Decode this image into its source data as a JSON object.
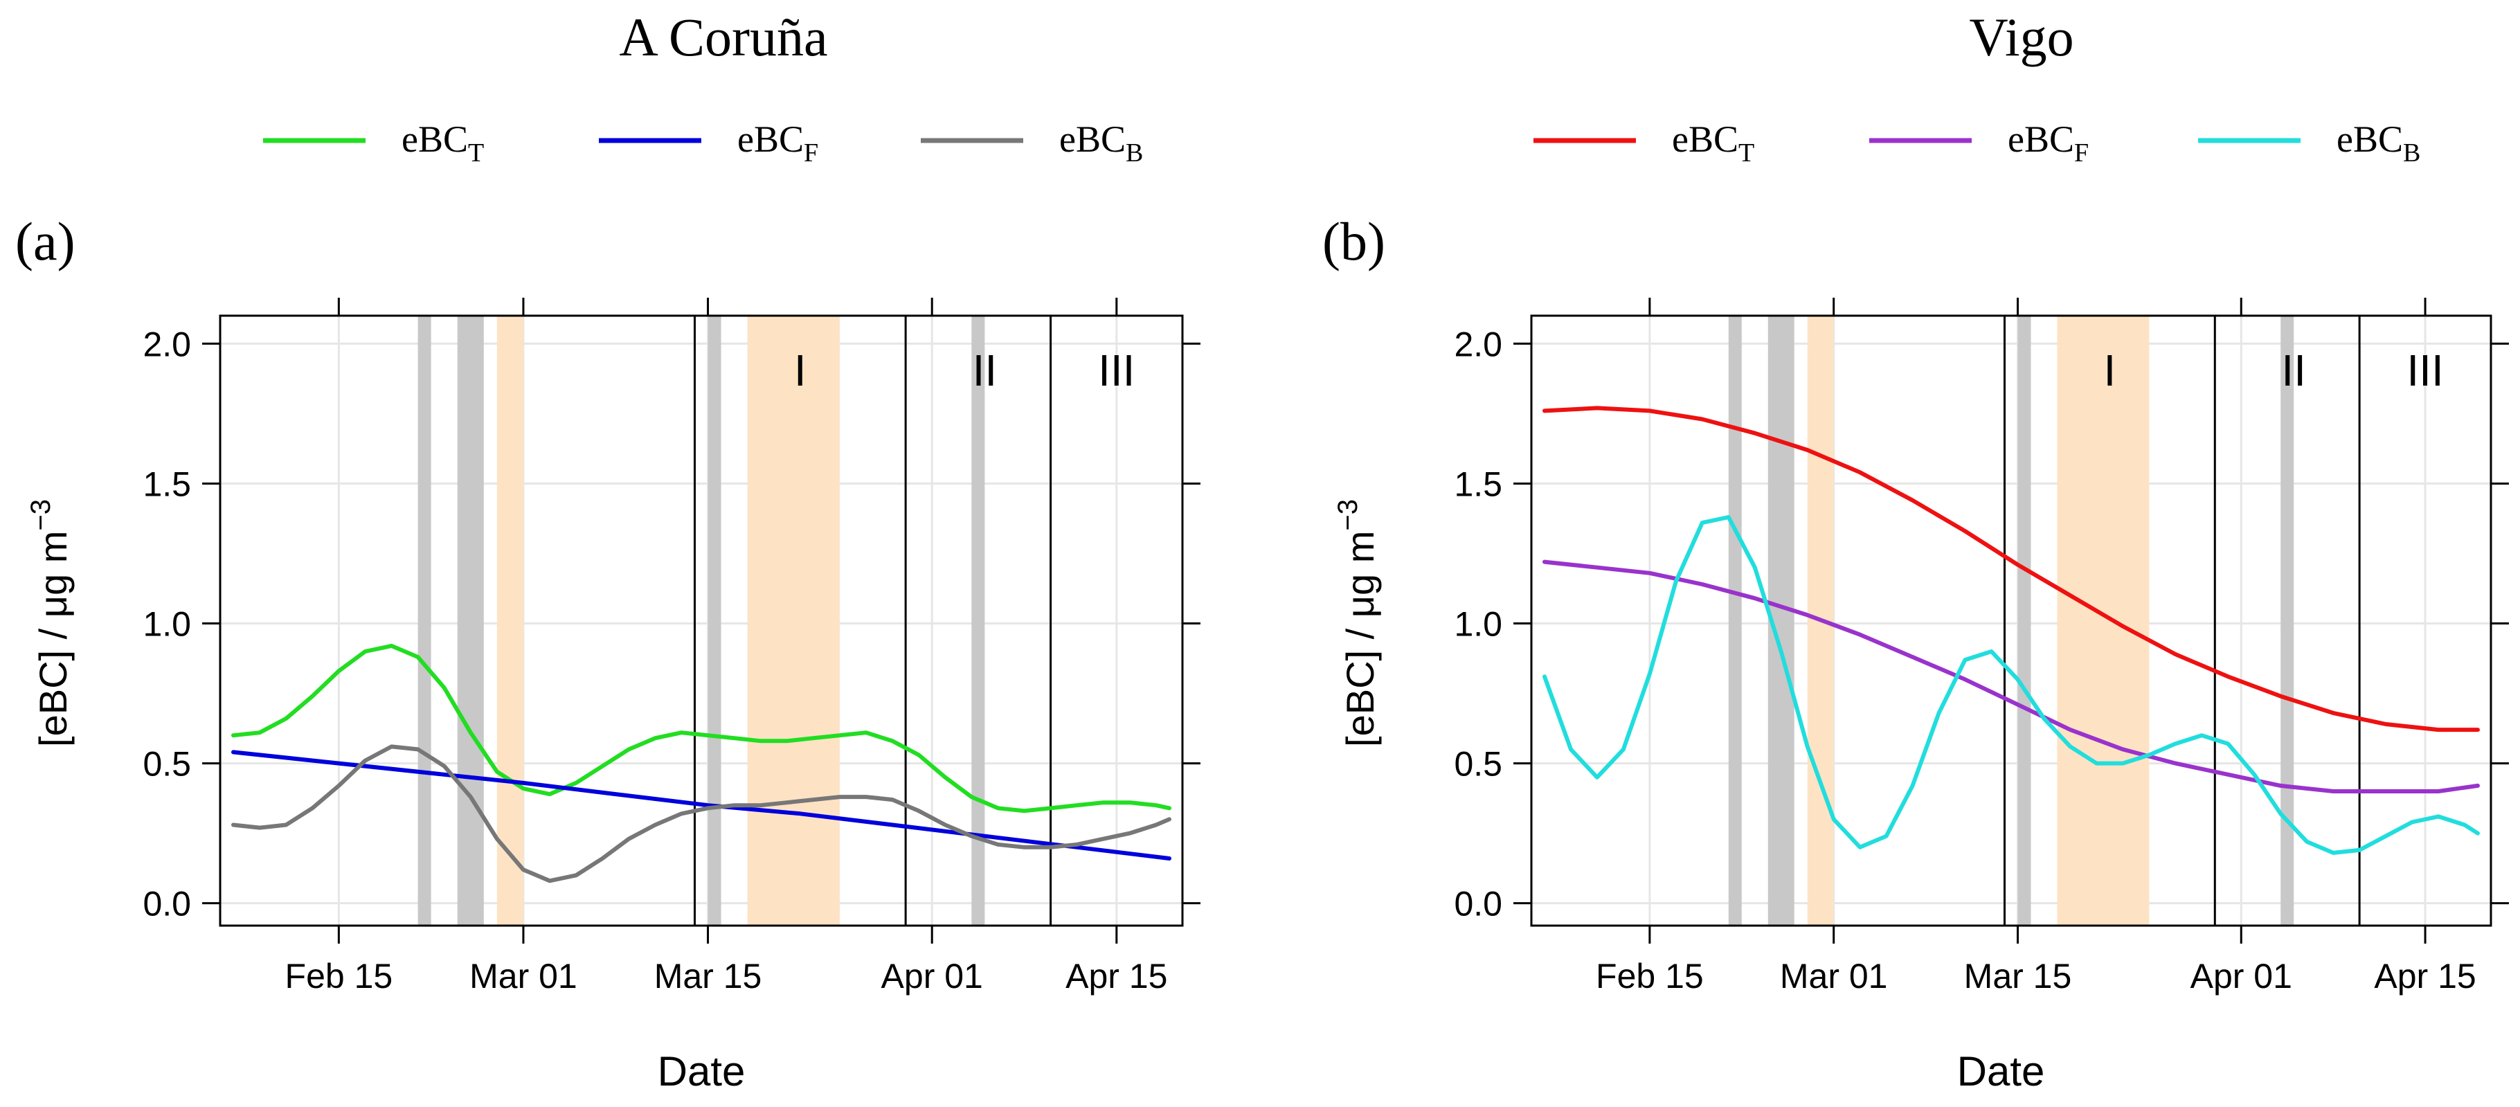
{
  "chart_data": [
    {
      "panel_label": "(a)",
      "title": "A Coruña",
      "type": "line",
      "xlabel": "Date",
      "ylabel": "[eBC] / μg m",
      "ylabel_sup": "−3",
      "x_ticks": [
        "Feb 15",
        "Mar 01",
        "Mar 15",
        "Apr 01",
        "Apr 15"
      ],
      "x_tick_dates": [
        "2021-02-15",
        "2021-03-01",
        "2021-03-15",
        "2021-04-01",
        "2021-04-15"
      ],
      "xlim": [
        "2021-02-06",
        "2021-04-20"
      ],
      "y_ticks": [
        "0.0",
        "0.5",
        "1.0",
        "1.5",
        "2.0"
      ],
      "ylim": [
        -0.08,
        2.1
      ],
      "grid": true,
      "legend_position": "top",
      "period_lines": [
        "2021-03-14",
        "2021-03-30",
        "2021-04-10"
      ],
      "period_labels": [
        {
          "text": "I",
          "date": "2021-03-22"
        },
        {
          "text": "II",
          "date": "2021-04-05"
        },
        {
          "text": "III",
          "date": "2021-04-15"
        }
      ],
      "gray_bands": [
        [
          "2021-02-21",
          "2021-02-22"
        ],
        [
          "2021-02-24",
          "2021-02-26"
        ],
        [
          "2021-03-15",
          "2021-03-16"
        ],
        [
          "2021-04-04",
          "2021-04-05"
        ]
      ],
      "orange_bands": [
        [
          "2021-02-27",
          "2021-02-29"
        ],
        [
          "2021-03-18",
          "2021-03-25"
        ]
      ],
      "series": [
        {
          "name": "eBC",
          "sub": "T",
          "color": "#22dd22",
          "points": [
            [
              "2021-02-07",
              0.6
            ],
            [
              "2021-02-09",
              0.61
            ],
            [
              "2021-02-11",
              0.66
            ],
            [
              "2021-02-13",
              0.74
            ],
            [
              "2021-02-15",
              0.83
            ],
            [
              "2021-02-17",
              0.9
            ],
            [
              "2021-02-19",
              0.92
            ],
            [
              "2021-02-21",
              0.88
            ],
            [
              "2021-02-23",
              0.77
            ],
            [
              "2021-02-25",
              0.61
            ],
            [
              "2021-02-27",
              0.47
            ],
            [
              "2021-03-01",
              0.41
            ],
            [
              "2021-03-03",
              0.39
            ],
            [
              "2021-03-05",
              0.43
            ],
            [
              "2021-03-07",
              0.49
            ],
            [
              "2021-03-09",
              0.55
            ],
            [
              "2021-03-11",
              0.59
            ],
            [
              "2021-03-13",
              0.61
            ],
            [
              "2021-03-15",
              0.6
            ],
            [
              "2021-03-17",
              0.59
            ],
            [
              "2021-03-19",
              0.58
            ],
            [
              "2021-03-21",
              0.58
            ],
            [
              "2021-03-23",
              0.59
            ],
            [
              "2021-03-25",
              0.6
            ],
            [
              "2021-03-27",
              0.61
            ],
            [
              "2021-03-29",
              0.58
            ],
            [
              "2021-03-31",
              0.53
            ],
            [
              "2021-04-02",
              0.45
            ],
            [
              "2021-04-04",
              0.38
            ],
            [
              "2021-04-06",
              0.34
            ],
            [
              "2021-04-08",
              0.33
            ],
            [
              "2021-04-10",
              0.34
            ],
            [
              "2021-04-12",
              0.35
            ],
            [
              "2021-04-14",
              0.36
            ],
            [
              "2021-04-16",
              0.36
            ],
            [
              "2021-04-18",
              0.35
            ],
            [
              "2021-04-19",
              0.34
            ]
          ]
        },
        {
          "name": "eBC",
          "sub": "F",
          "color": "#0000dd",
          "points": [
            [
              "2021-02-07",
              0.54
            ],
            [
              "2021-02-15",
              0.5
            ],
            [
              "2021-02-23",
              0.46
            ],
            [
              "2021-03-01",
              0.43
            ],
            [
              "2021-03-08",
              0.39
            ],
            [
              "2021-03-15",
              0.35
            ],
            [
              "2021-03-22",
              0.32
            ],
            [
              "2021-03-29",
              0.28
            ],
            [
              "2021-04-05",
              0.24
            ],
            [
              "2021-04-12",
              0.2
            ],
            [
              "2021-04-19",
              0.16
            ]
          ]
        },
        {
          "name": "eBC",
          "sub": "B",
          "color": "#777777",
          "points": [
            [
              "2021-02-07",
              0.28
            ],
            [
              "2021-02-09",
              0.27
            ],
            [
              "2021-02-11",
              0.28
            ],
            [
              "2021-02-13",
              0.34
            ],
            [
              "2021-02-15",
              0.42
            ],
            [
              "2021-02-17",
              0.51
            ],
            [
              "2021-02-19",
              0.56
            ],
            [
              "2021-02-21",
              0.55
            ],
            [
              "2021-02-23",
              0.49
            ],
            [
              "2021-02-25",
              0.38
            ],
            [
              "2021-02-27",
              0.23
            ],
            [
              "2021-03-01",
              0.12
            ],
            [
              "2021-03-03",
              0.08
            ],
            [
              "2021-03-05",
              0.1
            ],
            [
              "2021-03-07",
              0.16
            ],
            [
              "2021-03-09",
              0.23
            ],
            [
              "2021-03-11",
              0.28
            ],
            [
              "2021-03-13",
              0.32
            ],
            [
              "2021-03-15",
              0.34
            ],
            [
              "2021-03-17",
              0.35
            ],
            [
              "2021-03-19",
              0.35
            ],
            [
              "2021-03-21",
              0.36
            ],
            [
              "2021-03-23",
              0.37
            ],
            [
              "2021-03-25",
              0.38
            ],
            [
              "2021-03-27",
              0.38
            ],
            [
              "2021-03-29",
              0.37
            ],
            [
              "2021-03-31",
              0.33
            ],
            [
              "2021-04-02",
              0.28
            ],
            [
              "2021-04-04",
              0.24
            ],
            [
              "2021-04-06",
              0.21
            ],
            [
              "2021-04-08",
              0.2
            ],
            [
              "2021-04-10",
              0.2
            ],
            [
              "2021-04-12",
              0.21
            ],
            [
              "2021-04-14",
              0.23
            ],
            [
              "2021-04-16",
              0.25
            ],
            [
              "2021-04-18",
              0.28
            ],
            [
              "2021-04-19",
              0.3
            ]
          ]
        }
      ]
    },
    {
      "panel_label": "(b)",
      "title": "Vigo",
      "type": "line",
      "xlabel": "Date",
      "ylabel": "[eBC] / μg m",
      "ylabel_sup": "−3",
      "x_ticks": [
        "Feb 15",
        "Mar 01",
        "Mar 15",
        "Apr 01",
        "Apr 15"
      ],
      "x_tick_dates": [
        "2021-02-15",
        "2021-03-01",
        "2021-03-15",
        "2021-04-01",
        "2021-04-15"
      ],
      "xlim": [
        "2021-02-06",
        "2021-04-20"
      ],
      "y_ticks": [
        "0.0",
        "0.5",
        "1.0",
        "1.5",
        "2.0"
      ],
      "ylim": [
        -0.08,
        2.1
      ],
      "grid": true,
      "legend_position": "top",
      "period_lines": [
        "2021-03-14",
        "2021-03-30",
        "2021-04-10"
      ],
      "period_labels": [
        {
          "text": "I",
          "date": "2021-03-22"
        },
        {
          "text": "II",
          "date": "2021-04-05"
        },
        {
          "text": "III",
          "date": "2021-04-15"
        }
      ],
      "gray_bands": [
        [
          "2021-02-21",
          "2021-02-22"
        ],
        [
          "2021-02-24",
          "2021-02-26"
        ],
        [
          "2021-03-15",
          "2021-03-16"
        ],
        [
          "2021-04-04",
          "2021-04-05"
        ]
      ],
      "orange_bands": [
        [
          "2021-02-27",
          "2021-02-29"
        ],
        [
          "2021-03-18",
          "2021-03-25"
        ]
      ],
      "series": [
        {
          "name": "eBC",
          "sub": "T",
          "color": "#ee1111",
          "points": [
            [
              "2021-02-07",
              1.76
            ],
            [
              "2021-02-11",
              1.77
            ],
            [
              "2021-02-15",
              1.76
            ],
            [
              "2021-02-19",
              1.73
            ],
            [
              "2021-02-23",
              1.68
            ],
            [
              "2021-02-27",
              1.62
            ],
            [
              "2021-03-03",
              1.54
            ],
            [
              "2021-03-07",
              1.44
            ],
            [
              "2021-03-11",
              1.33
            ],
            [
              "2021-03-15",
              1.21
            ],
            [
              "2021-03-19",
              1.1
            ],
            [
              "2021-03-23",
              0.99
            ],
            [
              "2021-03-27",
              0.89
            ],
            [
              "2021-03-31",
              0.81
            ],
            [
              "2021-04-04",
              0.74
            ],
            [
              "2021-04-08",
              0.68
            ],
            [
              "2021-04-12",
              0.64
            ],
            [
              "2021-04-16",
              0.62
            ],
            [
              "2021-04-19",
              0.62
            ]
          ]
        },
        {
          "name": "eBC",
          "sub": "F",
          "color": "#9933cc",
          "points": [
            [
              "2021-02-07",
              1.22
            ],
            [
              "2021-02-11",
              1.2
            ],
            [
              "2021-02-15",
              1.18
            ],
            [
              "2021-02-19",
              1.14
            ],
            [
              "2021-02-23",
              1.09
            ],
            [
              "2021-02-27",
              1.03
            ],
            [
              "2021-03-03",
              0.96
            ],
            [
              "2021-03-07",
              0.88
            ],
            [
              "2021-03-11",
              0.8
            ],
            [
              "2021-03-15",
              0.71
            ],
            [
              "2021-03-19",
              0.62
            ],
            [
              "2021-03-23",
              0.55
            ],
            [
              "2021-03-27",
              0.5
            ],
            [
              "2021-03-31",
              0.46
            ],
            [
              "2021-04-04",
              0.42
            ],
            [
              "2021-04-08",
              0.4
            ],
            [
              "2021-04-12",
              0.4
            ],
            [
              "2021-04-16",
              0.4
            ],
            [
              "2021-04-19",
              0.42
            ]
          ]
        },
        {
          "name": "eBC",
          "sub": "B",
          "color": "#22dddd",
          "points": [
            [
              "2021-02-07",
              0.81
            ],
            [
              "2021-02-09",
              0.55
            ],
            [
              "2021-02-11",
              0.45
            ],
            [
              "2021-02-13",
              0.55
            ],
            [
              "2021-02-15",
              0.82
            ],
            [
              "2021-02-17",
              1.15
            ],
            [
              "2021-02-19",
              1.36
            ],
            [
              "2021-02-21",
              1.38
            ],
            [
              "2021-02-23",
              1.2
            ],
            [
              "2021-02-25",
              0.9
            ],
            [
              "2021-02-27",
              0.56
            ],
            [
              "2021-03-01",
              0.3
            ],
            [
              "2021-03-03",
              0.2
            ],
            [
              "2021-03-05",
              0.24
            ],
            [
              "2021-03-07",
              0.42
            ],
            [
              "2021-03-09",
              0.68
            ],
            [
              "2021-03-11",
              0.87
            ],
            [
              "2021-03-13",
              0.9
            ],
            [
              "2021-03-15",
              0.8
            ],
            [
              "2021-03-17",
              0.66
            ],
            [
              "2021-03-19",
              0.56
            ],
            [
              "2021-03-21",
              0.5
            ],
            [
              "2021-03-23",
              0.5
            ],
            [
              "2021-03-25",
              0.53
            ],
            [
              "2021-03-27",
              0.57
            ],
            [
              "2021-03-29",
              0.6
            ],
            [
              "2021-03-31",
              0.57
            ],
            [
              "2021-04-02",
              0.46
            ],
            [
              "2021-04-04",
              0.32
            ],
            [
              "2021-04-06",
              0.22
            ],
            [
              "2021-04-08",
              0.18
            ],
            [
              "2021-04-10",
              0.19
            ],
            [
              "2021-04-12",
              0.24
            ],
            [
              "2021-04-14",
              0.29
            ],
            [
              "2021-04-16",
              0.31
            ],
            [
              "2021-04-18",
              0.28
            ],
            [
              "2021-04-19",
              0.25
            ]
          ]
        }
      ]
    }
  ]
}
